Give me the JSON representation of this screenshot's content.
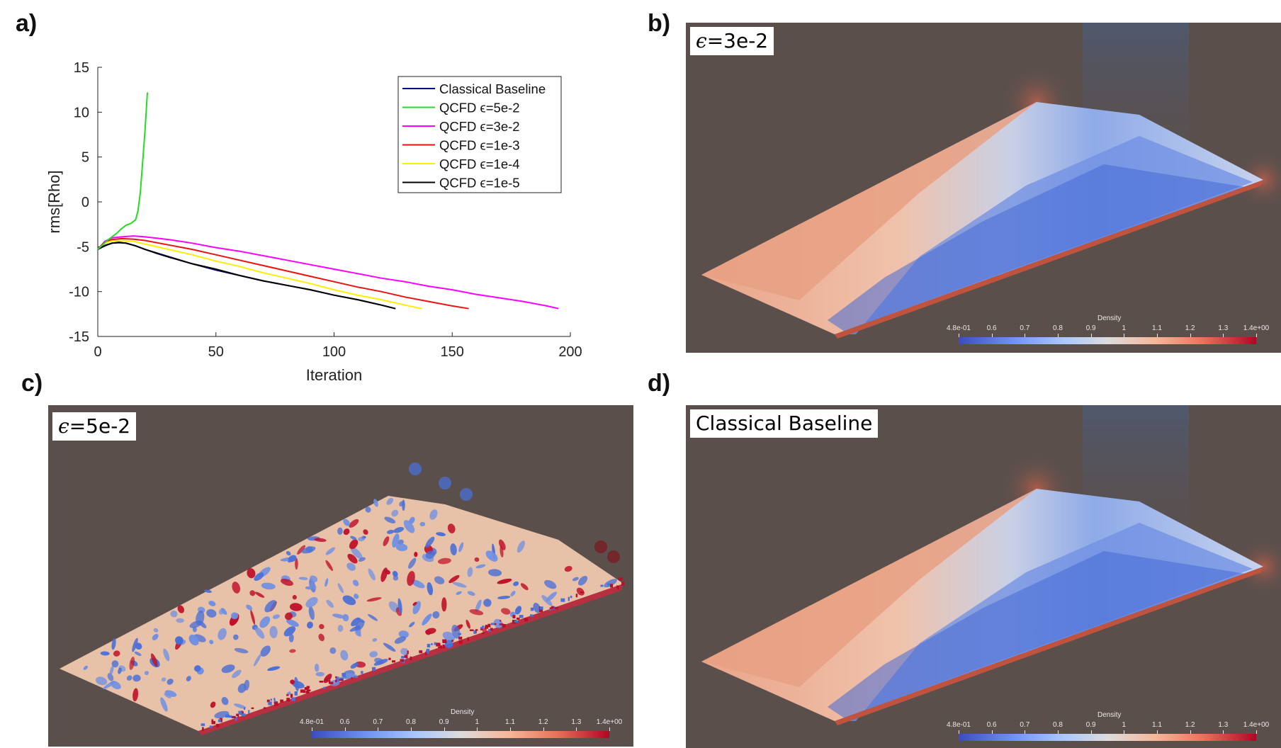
{
  "panels": {
    "a": {
      "letter": "a)"
    },
    "b": {
      "letter": "b)",
      "label_prefix": "ϵ",
      "label_value": "=3e-2"
    },
    "c": {
      "letter": "c)",
      "label_prefix": "ϵ",
      "label_value": "=5e-2"
    },
    "d": {
      "letter": "d)",
      "label_text": "Classical Baseline"
    }
  },
  "colorbar": {
    "title": "Density",
    "ticks": [
      "4.8e-01",
      "0.6",
      "0.7",
      "0.8",
      "0.9",
      "1",
      "1.1",
      "1.2",
      "1.3",
      "1.4e+00"
    ]
  },
  "colors": {
    "background_render": "#5b4f4c",
    "classical": "#00008b",
    "eps5e2": "#22dd22",
    "eps3e2": "#ff00ff",
    "eps1e3": "#ee1111",
    "eps1e4": "#ffee00",
    "eps1e5": "#000000"
  },
  "chart_data": {
    "type": "line",
    "title": "",
    "xlabel": "Iteration",
    "ylabel": "rms[Rho]",
    "xlim": [
      0,
      200
    ],
    "ylim": [
      -15,
      15
    ],
    "xticks": [
      0,
      50,
      100,
      150,
      200
    ],
    "yticks": [
      15,
      10,
      5,
      0,
      -5,
      -10,
      -15
    ],
    "grid": false,
    "legend_position": "top-right",
    "series": [
      {
        "name": "Classical Baseline",
        "color": "#00008b",
        "x": [
          0,
          3,
          6,
          9,
          12,
          16,
          20,
          25,
          30,
          40,
          50,
          60,
          70,
          80,
          90,
          100,
          110,
          120,
          126
        ],
        "y": [
          -5.3,
          -4.9,
          -4.6,
          -4.55,
          -4.6,
          -4.9,
          -5.3,
          -5.7,
          -6.1,
          -6.9,
          -7.6,
          -8.2,
          -8.8,
          -9.3,
          -9.8,
          -10.4,
          -10.9,
          -11.5,
          -11.9
        ]
      },
      {
        "name": "QCFD ϵ=5e-2",
        "color": "#22dd22",
        "x": [
          0,
          2,
          4,
          6,
          8,
          10,
          12,
          14,
          16,
          17,
          18,
          19,
          20,
          21
        ],
        "y": [
          -5.3,
          -4.8,
          -4.3,
          -3.9,
          -3.5,
          -3.0,
          -2.6,
          -2.4,
          -2.0,
          -1.0,
          1.0,
          4.5,
          8.0,
          12.2
        ]
      },
      {
        "name": "QCFD ϵ=3e-2",
        "color": "#ff00ff",
        "x": [
          0,
          3,
          6,
          10,
          15,
          20,
          30,
          40,
          50,
          60,
          70,
          80,
          90,
          100,
          110,
          120,
          130,
          140,
          150,
          160,
          170,
          180,
          190,
          195
        ],
        "y": [
          -5.3,
          -4.4,
          -4.0,
          -3.9,
          -3.8,
          -3.9,
          -4.2,
          -4.6,
          -5.1,
          -5.5,
          -6.0,
          -6.5,
          -7.0,
          -7.5,
          -8.0,
          -8.5,
          -8.9,
          -9.4,
          -9.8,
          -10.3,
          -10.7,
          -11.1,
          -11.6,
          -11.9
        ]
      },
      {
        "name": "QCFD ϵ=1e-3",
        "color": "#ee1111",
        "x": [
          0,
          3,
          6,
          10,
          15,
          20,
          30,
          40,
          50,
          60,
          70,
          80,
          90,
          100,
          110,
          120,
          130,
          140,
          150,
          157
        ],
        "y": [
          -5.3,
          -4.5,
          -4.2,
          -4.1,
          -4.15,
          -4.3,
          -4.8,
          -5.3,
          -5.9,
          -6.5,
          -7.1,
          -7.7,
          -8.3,
          -8.9,
          -9.5,
          -10.0,
          -10.6,
          -11.1,
          -11.6,
          -11.9
        ]
      },
      {
        "name": "QCFD ϵ=1e-4",
        "color": "#ffee00",
        "x": [
          0,
          3,
          6,
          10,
          15,
          20,
          30,
          40,
          50,
          60,
          70,
          80,
          90,
          100,
          110,
          120,
          130,
          137
        ],
        "y": [
          -5.3,
          -4.6,
          -4.35,
          -4.3,
          -4.4,
          -4.7,
          -5.3,
          -5.9,
          -6.6,
          -7.2,
          -7.9,
          -8.5,
          -9.1,
          -9.8,
          -10.4,
          -10.9,
          -11.5,
          -11.9
        ]
      },
      {
        "name": "QCFD ϵ=1e-5",
        "color": "#000000",
        "x": [
          0,
          3,
          6,
          9,
          12,
          16,
          20,
          25,
          30,
          40,
          50,
          60,
          70,
          80,
          90,
          100,
          110,
          120,
          126
        ],
        "y": [
          -5.3,
          -4.85,
          -4.6,
          -4.5,
          -4.6,
          -4.9,
          -5.3,
          -5.75,
          -6.15,
          -6.9,
          -7.5,
          -8.2,
          -8.8,
          -9.3,
          -9.8,
          -10.4,
          -10.9,
          -11.5,
          -11.9
        ]
      }
    ]
  }
}
